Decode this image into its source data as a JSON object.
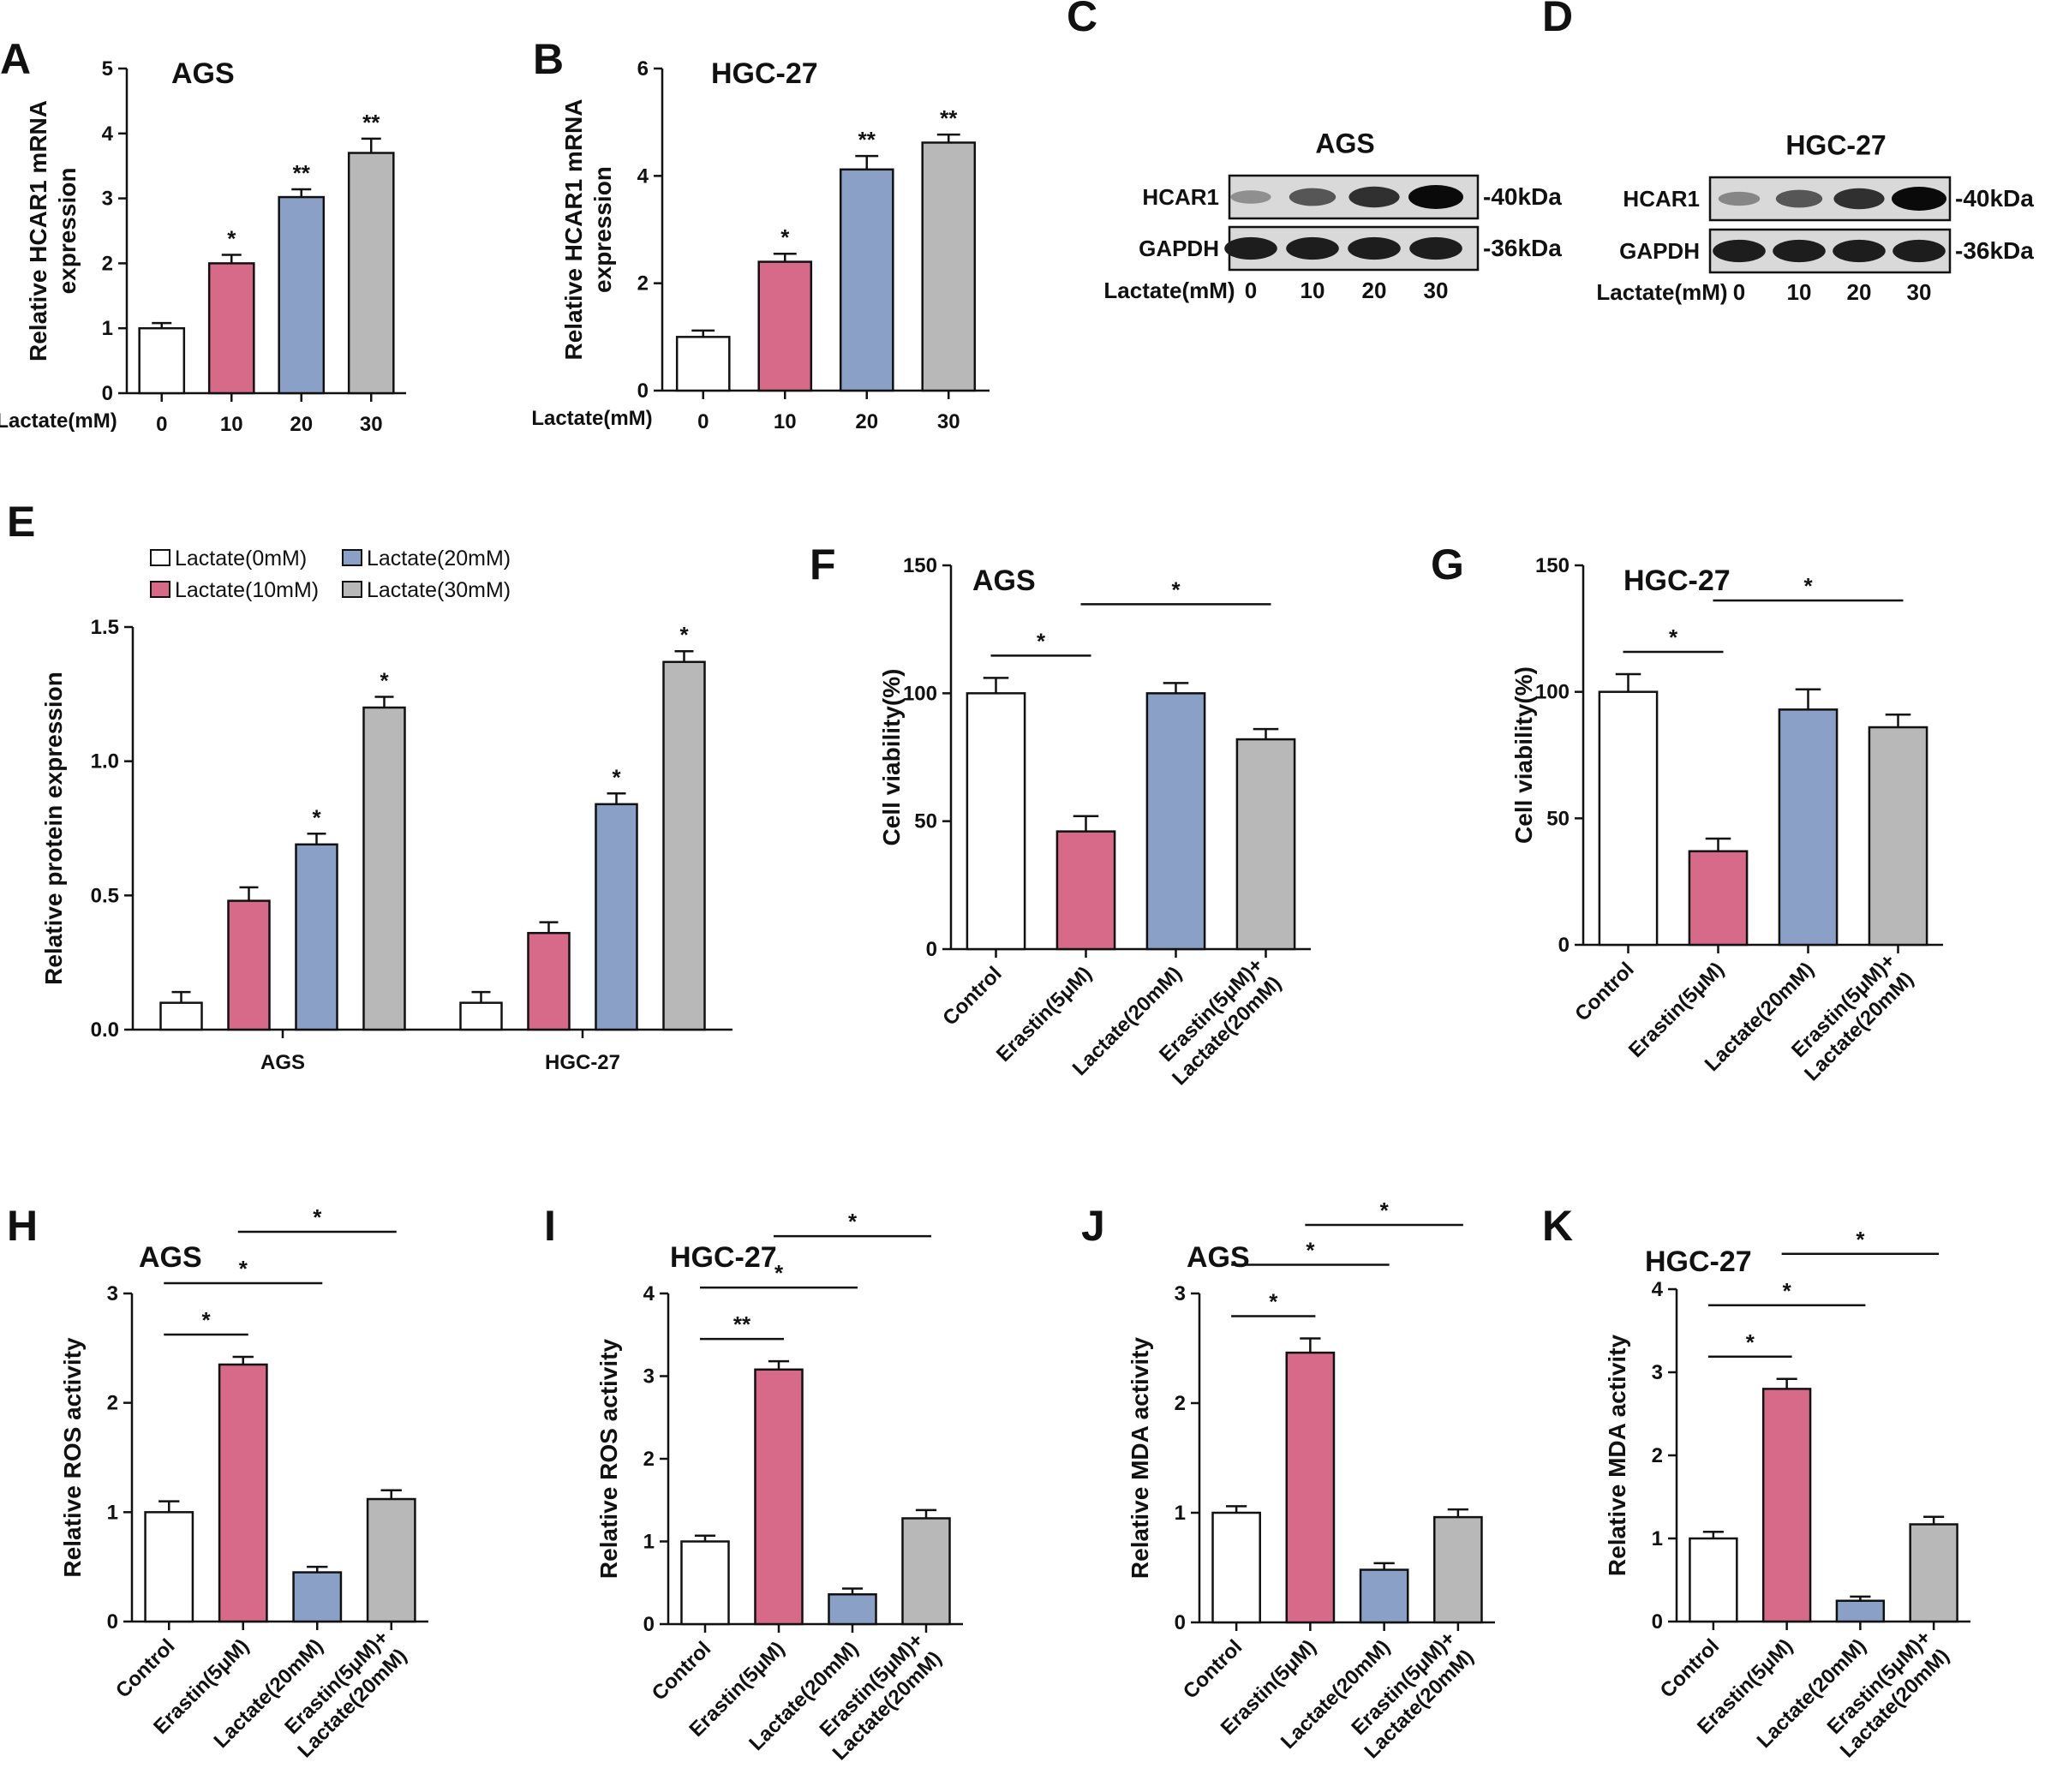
{
  "colors": {
    "c0": "#ffffff",
    "c10": "#d66a88",
    "c20": "#8ba0c6",
    "c30": "#b8b8b8",
    "edge": "#111111"
  },
  "panels": [
    {
      "id": "A",
      "label": "A",
      "title": "AGS",
      "ylabel": [
        "Relative HCAR1 mRNA",
        "expression"
      ],
      "xprefix": "Lactate(mM)",
      "rotate": false,
      "categories": [
        "0",
        "10",
        "20",
        "30"
      ],
      "values": [
        1.0,
        2.0,
        3.02,
        3.7
      ],
      "errors": [
        0.08,
        0.13,
        0.12,
        0.22
      ],
      "ylim": [
        0,
        5
      ],
      "yticks": [
        "0",
        "1",
        "2",
        "3",
        "4",
        "5"
      ],
      "colors": [
        "c0",
        "c10",
        "c20",
        "c30"
      ],
      "stars": [
        "",
        "*",
        "**",
        "**"
      ],
      "brackets": []
    },
    {
      "id": "B",
      "label": "B",
      "title": "HGC-27",
      "ylabel": [
        "Relative HCAR1 mRNA",
        "expression"
      ],
      "xprefix": "Lactate(mM)",
      "rotate": false,
      "categories": [
        "0",
        "10",
        "20",
        "30"
      ],
      "values": [
        1.0,
        2.4,
        4.12,
        4.62
      ],
      "errors": [
        0.12,
        0.15,
        0.25,
        0.15
      ],
      "ylim": [
        0,
        6
      ],
      "yticks": [
        "0",
        "2",
        "4",
        "6"
      ],
      "colors": [
        "c0",
        "c10",
        "c20",
        "c30"
      ],
      "stars": [
        "",
        "*",
        "**",
        "**"
      ],
      "brackets": []
    },
    {
      "id": "F",
      "label": "F",
      "title": "AGS",
      "ylabel": [
        "Cell viability(%)"
      ],
      "rotate": true,
      "categories": [
        "Control",
        "Erastin(5μM)",
        "Lactate(20mM)",
        "Erastin(5μM)+|Lactate(20mM)"
      ],
      "values": [
        100,
        46,
        100,
        82
      ],
      "errors": [
        6,
        6,
        4,
        4
      ],
      "ylim": [
        0,
        150
      ],
      "yticks": [
        "0",
        "50",
        "100",
        "150"
      ],
      "colors": [
        "c0",
        "c10",
        "c20",
        "c30"
      ],
      "stars": [
        "",
        "",
        "",
        ""
      ],
      "brackets": [
        {
          "from": 0,
          "to": 1,
          "level": 0,
          "label": "*"
        },
        {
          "from": 1,
          "to": 3,
          "level": 1,
          "label": "*"
        }
      ]
    },
    {
      "id": "G",
      "label": "G",
      "title": "HGC-27",
      "ylabel": [
        "Cell viability(%)"
      ],
      "rotate": true,
      "categories": [
        "Control",
        "Erastin(5μM)",
        "Lactate(20mM)",
        "Erastin(5μM)+|Lactate(20mM)"
      ],
      "values": [
        100,
        37,
        93,
        86
      ],
      "errors": [
        7,
        5,
        8,
        5
      ],
      "ylim": [
        0,
        150
      ],
      "yticks": [
        "0",
        "50",
        "100",
        "150"
      ],
      "colors": [
        "c0",
        "c10",
        "c20",
        "c30"
      ],
      "stars": [
        "",
        "",
        "",
        ""
      ],
      "brackets": [
        {
          "from": 0,
          "to": 1,
          "level": 0,
          "label": "*"
        },
        {
          "from": 1,
          "to": 3,
          "level": 1,
          "label": "*"
        }
      ]
    },
    {
      "id": "H",
      "label": "H",
      "title": "AGS",
      "ylabel": [
        "Relative ROS activity"
      ],
      "rotate": true,
      "categories": [
        "Control",
        "Erastin(5μM)",
        "Lactate(20mM)",
        "Erastin(5μM)+|Lactate(20mM)"
      ],
      "values": [
        1.0,
        2.35,
        0.45,
        1.12
      ],
      "errors": [
        0.1,
        0.07,
        0.05,
        0.08
      ],
      "ylim": [
        0,
        3
      ],
      "yticks": [
        "0",
        "1",
        "2",
        "3"
      ],
      "colors": [
        "c0",
        "c10",
        "c20",
        "c30"
      ],
      "stars": [
        "",
        "",
        "",
        ""
      ],
      "brackets": [
        {
          "from": 0,
          "to": 1,
          "level": 0,
          "label": "*"
        },
        {
          "from": 0,
          "to": 2,
          "level": 1,
          "label": "*"
        },
        {
          "from": 1,
          "to": 3,
          "level": 2,
          "label": "*"
        }
      ]
    },
    {
      "id": "I",
      "label": "I",
      "title": "HGC-27",
      "ylabel": [
        "Relative ROS activity"
      ],
      "rotate": true,
      "categories": [
        "Control",
        "Erastin(5μM)",
        "Lactate(20mM)",
        "Erastin(5μM)+|Lactate(20mM)"
      ],
      "values": [
        1.0,
        3.08,
        0.36,
        1.28
      ],
      "errors": [
        0.07,
        0.1,
        0.07,
        0.1
      ],
      "ylim": [
        0,
        4
      ],
      "yticks": [
        "0",
        "1",
        "2",
        "3",
        "4"
      ],
      "colors": [
        "c0",
        "c10",
        "c20",
        "c30"
      ],
      "stars": [
        "",
        "",
        "",
        ""
      ],
      "brackets": [
        {
          "from": 0,
          "to": 1,
          "level": 0,
          "label": "**"
        },
        {
          "from": 0,
          "to": 2,
          "level": 1,
          "label": "*"
        },
        {
          "from": 1,
          "to": 3,
          "level": 2,
          "label": "*"
        }
      ]
    },
    {
      "id": "J",
      "label": "J",
      "title": "AGS",
      "ylabel": [
        "Relative MDA activity"
      ],
      "rotate": true,
      "categories": [
        "Control",
        "Erastin(5μM)",
        "Lactate(20mM)",
        "Erastin(5μM)+|Lactate(20mM)"
      ],
      "values": [
        1.0,
        2.46,
        0.48,
        0.96
      ],
      "errors": [
        0.06,
        0.13,
        0.06,
        0.07
      ],
      "ylim": [
        0,
        3
      ],
      "yticks": [
        "0",
        "1",
        "2",
        "3"
      ],
      "colors": [
        "c0",
        "c10",
        "c20",
        "c30"
      ],
      "stars": [
        "",
        "",
        "",
        ""
      ],
      "brackets": [
        {
          "from": 0,
          "to": 1,
          "level": 0,
          "label": "*"
        },
        {
          "from": 0,
          "to": 2,
          "level": 1,
          "label": "*"
        },
        {
          "from": 1,
          "to": 3,
          "level": 2,
          "label": "*"
        }
      ]
    },
    {
      "id": "K",
      "label": "K",
      "title": "HGC-27",
      "ylabel": [
        "Relative MDA activity"
      ],
      "rotate": true,
      "categories": [
        "Control",
        "Erastin(5μM)",
        "Lactate(20mM)",
        "Erastin(5μM)+|Lactate(20mM)"
      ],
      "values": [
        1.0,
        2.8,
        0.25,
        1.17
      ],
      "errors": [
        0.08,
        0.12,
        0.05,
        0.09
      ],
      "ylim": [
        0,
        4
      ],
      "yticks": [
        "0",
        "1",
        "2",
        "3",
        "4"
      ],
      "colors": [
        "c0",
        "c10",
        "c20",
        "c30"
      ],
      "stars": [
        "",
        "",
        "",
        ""
      ],
      "brackets": [
        {
          "from": 0,
          "to": 1,
          "level": 0,
          "label": "*"
        },
        {
          "from": 0,
          "to": 2,
          "level": 1,
          "label": "*"
        },
        {
          "from": 1,
          "to": 3,
          "level": 2,
          "label": "*"
        }
      ]
    }
  ],
  "panelE": {
    "label": "E",
    "ylabel": "Relative protein expression",
    "groups": [
      "AGS",
      "HGC-27"
    ],
    "legend": [
      "Lactate(0mM)",
      "Lactate(10mM)",
      "Lactate(20mM)",
      "Lactate(30mM)"
    ],
    "colors": [
      "c0",
      "c10",
      "c20",
      "c30"
    ],
    "values": [
      [
        0.1,
        0.48,
        0.69,
        1.2
      ],
      [
        0.1,
        0.36,
        0.84,
        1.37
      ]
    ],
    "errors": [
      [
        0.04,
        0.05,
        0.04,
        0.04
      ],
      [
        0.04,
        0.04,
        0.04,
        0.04
      ]
    ],
    "stars": [
      [
        "",
        "",
        "*",
        "*"
      ],
      [
        "",
        "",
        "*",
        "*"
      ]
    ],
    "ylim": [
      0,
      1.5
    ],
    "yticks": [
      "0.0",
      "0.5",
      "1.0",
      "1.5"
    ]
  },
  "westerns": [
    {
      "id": "C",
      "label": "C",
      "title": "AGS",
      "rows": [
        "HCAR1",
        "GAPDH"
      ],
      "kda": [
        "-40kDa",
        "-36kDa"
      ],
      "xprefix": "Lactate(mM)",
      "lanes": [
        "0",
        "10",
        "20",
        "30"
      ],
      "intensity": [
        [
          0.3,
          0.6,
          0.8,
          1.0
        ],
        [
          0.9,
          0.9,
          0.9,
          0.9
        ]
      ]
    },
    {
      "id": "D",
      "label": "D",
      "title": "HGC-27",
      "rows": [
        "HCAR1",
        "GAPDH"
      ],
      "kda": [
        "-40kDa",
        "-36kDa"
      ],
      "xprefix": "Lactate(mM)",
      "lanes": [
        "0",
        "10",
        "20",
        "30"
      ],
      "intensity": [
        [
          0.35,
          0.6,
          0.8,
          1.0
        ],
        [
          0.9,
          0.9,
          0.9,
          0.9
        ]
      ]
    }
  ]
}
